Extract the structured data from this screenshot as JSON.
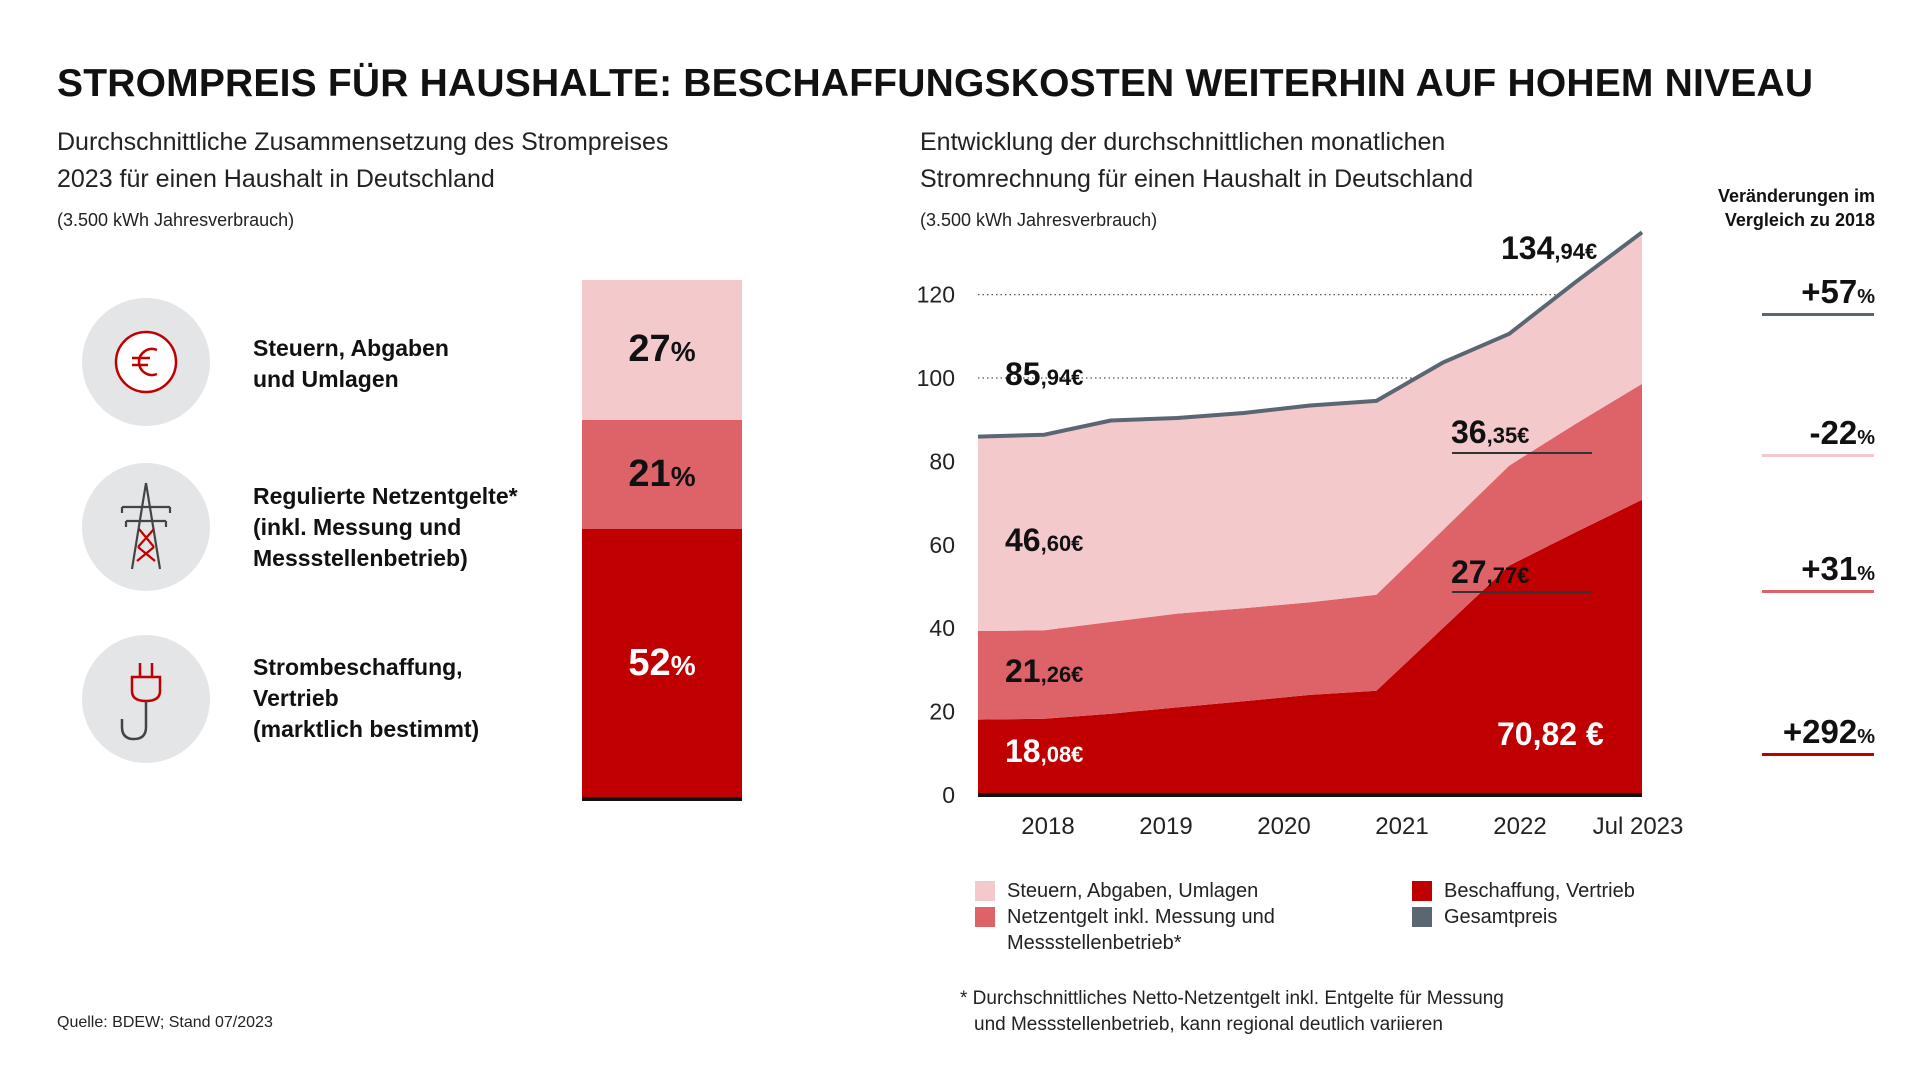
{
  "title": "STROMPREIS FÜR HAUSHALTE: BESCHAFFUNGSKOSTEN WEITERHIN AUF HOHEM NIVEAU",
  "left": {
    "subtitle_line1": "Durchschnittliche Zusammensetzung des Strompreises",
    "subtitle_line2": "2023 für einen Haushalt in Deutschland",
    "consumption_note": "(3.500 kWh Jahresverbrauch)",
    "categories": [
      {
        "icon": "euro-icon",
        "line1": "Steuern, Abgaben",
        "line2": "und Umlagen",
        "line3": ""
      },
      {
        "icon": "power-pylon-icon",
        "line1": "Regulierte Netzentgelte*",
        "line2": "(inkl. Messung und",
        "line3": "Messstellenbetrieb)"
      },
      {
        "icon": "power-plug-icon",
        "line1": "Strombeschaffung,",
        "line2": "Vertrieb",
        "line3": "(marktlich bestimmt)"
      }
    ]
  },
  "right": {
    "subtitle_line1": "Entwicklung der durchschnittlichen monatlichen",
    "subtitle_line2": "Stromrechnung für einen Haushalt in Deutschland",
    "consumption_note": "(3.500 kWh Jahresverbrauch)",
    "changes_header_line1": "Veränderungen im",
    "changes_header_line2": "Vergleich zu 2018",
    "changes": [
      {
        "value": "+57",
        "unit": "%",
        "color": "#5a6672"
      },
      {
        "value": "-22",
        "unit": "%",
        "color": "#f3c9cc"
      },
      {
        "value": "+31",
        "unit": "%",
        "color": "#dd6368"
      },
      {
        "value": "+292",
        "unit": "%",
        "color": "#c00000"
      }
    ],
    "annotations": [
      {
        "big": "85",
        "small": ",94€",
        "color": "#111111"
      },
      {
        "big": "46",
        "small": ",60€",
        "color": "#111111"
      },
      {
        "big": "21",
        "small": ",26€",
        "color": "#111111"
      },
      {
        "big": "18",
        "small": ",08€",
        "color": "#ffffff"
      },
      {
        "big": "134",
        "small": ",94€",
        "color": "#111111"
      },
      {
        "big": "36",
        "small": ",35€",
        "color": "#111111"
      },
      {
        "big": "27",
        "small": ",77€",
        "color": "#111111"
      },
      {
        "big": "70,82 €",
        "small": "",
        "color": "#ffffff"
      }
    ],
    "legend": [
      {
        "label_line1": "Steuern, Abgaben, Umlagen",
        "label_line2": "",
        "color": "#f3c9cc"
      },
      {
        "label_line1": "Netzentgelt inkl. Messung und",
        "label_line2": "Messstellenbetrieb*",
        "color": "#dd6368"
      },
      {
        "label_line1": "Beschaffung, Vertrieb",
        "label_line2": "",
        "color": "#c00000"
      },
      {
        "label_line1": "Gesamtpreis",
        "label_line2": "",
        "color": "#5a6672"
      }
    ],
    "footnote_line1": "* Durchschnittliches Netto-Netzentgelt inkl. Entgelte für Messung",
    "footnote_line2": "und Messstellenbetrieb, kann regional deutlich variieren"
  },
  "source": "Quelle: BDEW; Stand 07/2023",
  "chart_data": [
    {
      "type": "bar",
      "categories": [
        "2023"
      ],
      "series": [
        {
          "name": "Steuern, Abgaben und Umlagen",
          "values": [
            27
          ],
          "label": "27",
          "color": "#f3c9cc"
        },
        {
          "name": "Regulierte Netzentgelte* (inkl. Messung und Messstellenbetrieb)",
          "values": [
            21
          ],
          "label": "21",
          "color": "#dd6368"
        },
        {
          "name": "Strombeschaffung, Vertrieb (marktlich bestimmt)",
          "values": [
            52
          ],
          "label": "52",
          "color": "#c00000"
        }
      ],
      "unit": "%"
    },
    {
      "type": "area",
      "x": [
        "2018",
        "2018.5",
        "2019",
        "2019.5",
        "2020",
        "2020.5",
        "2021",
        "2021.5",
        "2022",
        "2022.5",
        "Jul 2023"
      ],
      "x_ticks": [
        "2018",
        "2019",
        "2020",
        "2021",
        "2022",
        "Jul 2023"
      ],
      "series": [
        {
          "name": "Beschaffung, Vertrieb",
          "values": [
            18.08,
            18.3,
            19.5,
            21,
            22.5,
            24,
            25,
            40,
            55,
            63,
            70.82
          ],
          "color": "#c00000"
        },
        {
          "name": "Netzentgelt inkl. Messung und Messstellenbetrieb*",
          "values": [
            21.26,
            21.2,
            22,
            22.5,
            22.3,
            22.2,
            23,
            23.5,
            24,
            26,
            27.77
          ],
          "color": "#dd6368"
        },
        {
          "name": "Steuern, Abgaben, Umlagen",
          "values": [
            46.6,
            46.9,
            48.3,
            46.9,
            46.8,
            47.2,
            46.5,
            40.2,
            31.6,
            34,
            36.35
          ],
          "color": "#f3c9cc"
        }
      ],
      "total": {
        "name": "Gesamtpreis",
        "values": [
          85.94,
          86.4,
          89.8,
          90.4,
          91.6,
          93.4,
          94.5,
          103.7,
          110.6,
          123,
          134.94
        ],
        "color": "#5a6672"
      },
      "ylim": [
        0,
        134.94
      ],
      "yticks": [
        0,
        20,
        40,
        60,
        80,
        100,
        120
      ],
      "grid": true,
      "unit": "€"
    }
  ]
}
